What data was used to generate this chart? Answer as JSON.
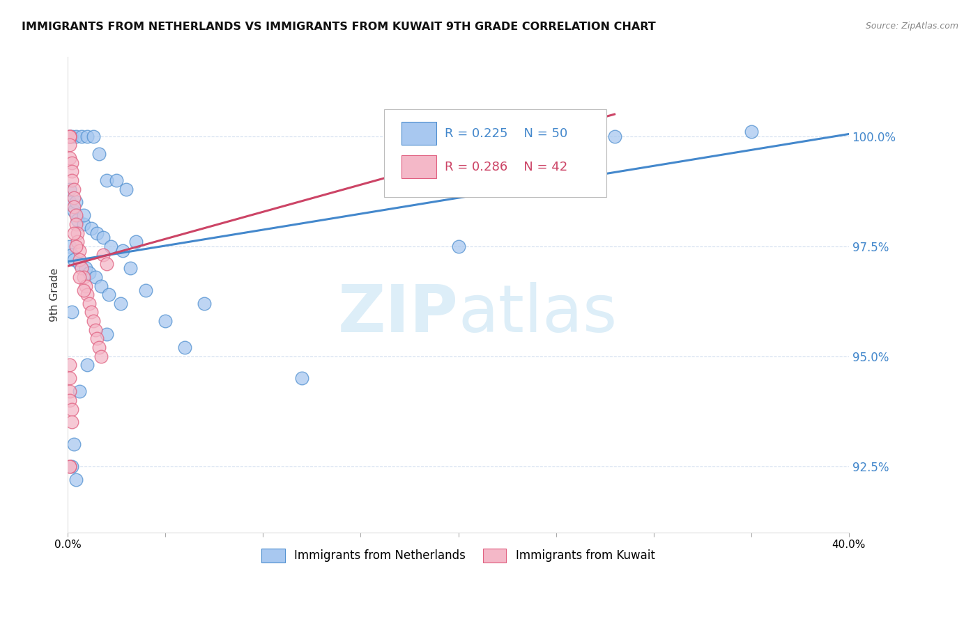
{
  "title": "IMMIGRANTS FROM NETHERLANDS VS IMMIGRANTS FROM KUWAIT 9TH GRADE CORRELATION CHART",
  "source": "Source: ZipAtlas.com",
  "ylabel": "9th Grade",
  "y_ticks": [
    92.5,
    95.0,
    97.5,
    100.0
  ],
  "y_min": 91.0,
  "y_max": 101.8,
  "x_min": 0.0,
  "x_max": 0.4,
  "legend_blue": {
    "R": "0.225",
    "N": "50",
    "label": "Immigrants from Netherlands"
  },
  "legend_pink": {
    "R": "0.286",
    "N": "42",
    "label": "Immigrants from Kuwait"
  },
  "blue_color": "#a8c8f0",
  "pink_color": "#f4b8c8",
  "blue_edge_color": "#5090d0",
  "pink_edge_color": "#e06080",
  "blue_line_color": "#4488cc",
  "pink_line_color": "#cc4466",
  "watermark_color": "#ddeef8",
  "blue_line": {
    "x0": 0.0,
    "y0": 97.15,
    "x1": 0.4,
    "y1": 100.05
  },
  "pink_line": {
    "x0": 0.0,
    "y0": 97.05,
    "x1": 0.28,
    "y1": 100.5
  },
  "blue_scatter_x": [
    0.001,
    0.002,
    0.004,
    0.007,
    0.01,
    0.013,
    0.016,
    0.02,
    0.025,
    0.03,
    0.001,
    0.003,
    0.005,
    0.008,
    0.012,
    0.015,
    0.018,
    0.022,
    0.028,
    0.035,
    0.001,
    0.002,
    0.003,
    0.006,
    0.009,
    0.011,
    0.014,
    0.017,
    0.021,
    0.027,
    0.001,
    0.004,
    0.008,
    0.032,
    0.04,
    0.05,
    0.07,
    0.18,
    0.28,
    0.35,
    0.002,
    0.01,
    0.02,
    0.06,
    0.12,
    0.2,
    0.002,
    0.004,
    0.003,
    0.006
  ],
  "blue_scatter_y": [
    100.0,
    100.0,
    100.0,
    100.0,
    100.0,
    100.0,
    99.6,
    99.0,
    99.0,
    98.8,
    98.5,
    98.3,
    98.1,
    98.0,
    97.9,
    97.8,
    97.7,
    97.5,
    97.4,
    97.6,
    97.5,
    97.3,
    97.2,
    97.1,
    97.0,
    96.9,
    96.8,
    96.6,
    96.4,
    96.2,
    98.8,
    98.5,
    98.2,
    97.0,
    96.5,
    95.8,
    96.2,
    99.5,
    100.0,
    100.1,
    96.0,
    94.8,
    95.5,
    95.2,
    94.5,
    97.5,
    92.5,
    92.2,
    93.0,
    94.2
  ],
  "pink_scatter_x": [
    0.001,
    0.001,
    0.001,
    0.001,
    0.001,
    0.002,
    0.002,
    0.002,
    0.003,
    0.003,
    0.003,
    0.004,
    0.004,
    0.005,
    0.005,
    0.006,
    0.006,
    0.007,
    0.008,
    0.009,
    0.01,
    0.011,
    0.012,
    0.013,
    0.014,
    0.015,
    0.016,
    0.017,
    0.018,
    0.02,
    0.001,
    0.001,
    0.001,
    0.001,
    0.002,
    0.002,
    0.003,
    0.004,
    0.006,
    0.008,
    0.001,
    0.001
  ],
  "pink_scatter_y": [
    100.0,
    100.0,
    100.0,
    99.8,
    99.5,
    99.4,
    99.2,
    99.0,
    98.8,
    98.6,
    98.4,
    98.2,
    98.0,
    97.8,
    97.6,
    97.4,
    97.2,
    97.0,
    96.8,
    96.6,
    96.4,
    96.2,
    96.0,
    95.8,
    95.6,
    95.4,
    95.2,
    95.0,
    97.3,
    97.1,
    94.8,
    94.5,
    94.2,
    94.0,
    93.8,
    93.5,
    97.8,
    97.5,
    96.8,
    96.5,
    92.5,
    92.5
  ]
}
